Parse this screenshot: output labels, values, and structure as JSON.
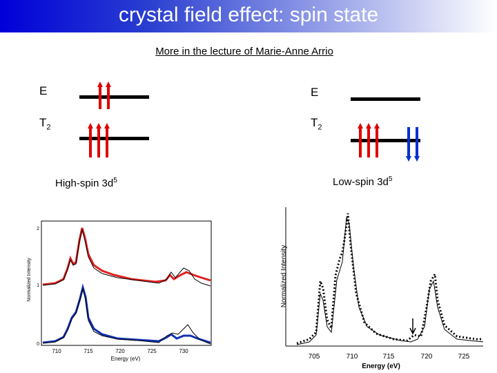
{
  "title": "crystal field effect: spin state",
  "subtitle": "More in the lecture of Marie-Anne Arrio",
  "left_diagram": {
    "level_e": "E",
    "level_t2_main": "T",
    "level_t2_sub": "2",
    "caption_main": "High-spin 3d",
    "caption_sup": "5"
  },
  "right_diagram": {
    "level_e": "E",
    "level_t2_main": "T",
    "level_t2_sub": "2",
    "caption_main": "Low-spin 3d",
    "caption_sup": "5"
  },
  "colors": {
    "up_arrow": "#e00000",
    "down_arrow": "#0030d0",
    "level_line": "#000000"
  },
  "left_plot": {
    "ylabel": "Normalized Intensity",
    "xlabel": "Energy (eV)",
    "xticks": [
      "710",
      "715",
      "720",
      "725",
      "730"
    ],
    "yticks": [
      "2",
      "1",
      "0"
    ],
    "series_colors": [
      "#e02020",
      "#1030b0",
      "#000000"
    ]
  },
  "right_plot": {
    "ylabel": "Normalized Intensity",
    "xlabel": "Energy (eV)",
    "xticks": [
      "705",
      "710",
      "715",
      "720",
      "725"
    ]
  }
}
